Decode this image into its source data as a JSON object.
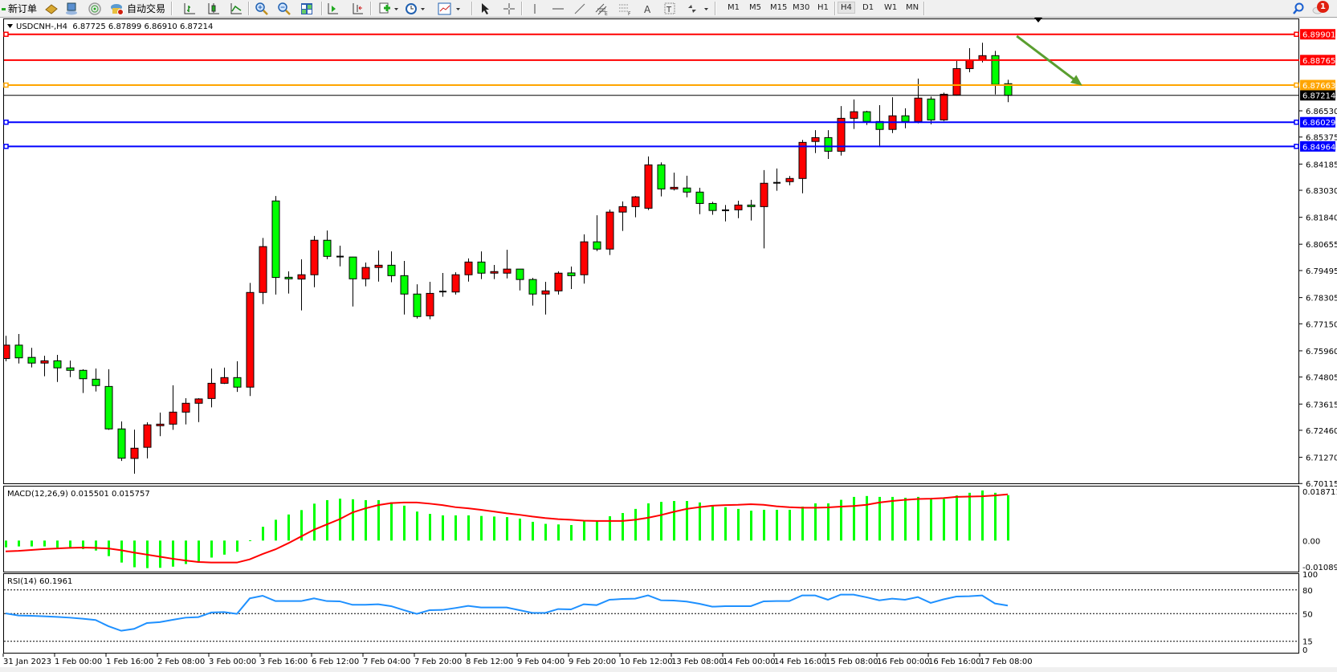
{
  "toolbar": {
    "new_order_label": "新订单",
    "auto_trading_label": "自动交易",
    "timeframes": [
      "M1",
      "M5",
      "M15",
      "M30",
      "H1",
      "H4",
      "D1",
      "W1",
      "MN"
    ],
    "active_timeframe": "H4",
    "notification_count": "1",
    "icons": [
      "new-order-icon",
      "history-book-icon",
      "terminal-icon",
      "signal-icon",
      "auto-trading-icon",
      "bar-chart-icon",
      "candlestick-icon",
      "line-chart-icon",
      "zoom-in-icon",
      "zoom-out-icon",
      "tile-windows-icon",
      "chart-shift-icon",
      "auto-scroll-icon",
      "indicators-icon",
      "periods-clock-icon",
      "templates-icon",
      "cursor-icon",
      "crosshair-icon",
      "vertical-line-icon",
      "horizontal-line-icon",
      "trendline-icon",
      "equidistant-channel-icon",
      "fibonacci-icon",
      "text-icon",
      "text-label-icon",
      "arrows-icon",
      "search-icon",
      "notification-icon"
    ]
  },
  "chart": {
    "info": "USDCNH-,H4  6.87725 6.87899 6.86910 6.87214",
    "macd_label": "MACD(12,26,9) 0.015501 0.015757",
    "rsi_label": "RSI(14) 60.1961"
  },
  "chart_data": {
    "type": "candlestick",
    "symbol": "USDCNH-",
    "timeframe": "H4",
    "bull_color": "#ff0000",
    "bear_color": "#00ff00",
    "ohlc_fields": [
      "open",
      "high",
      "low",
      "close"
    ],
    "candles": [
      [
        6.7562,
        6.7662,
        6.755,
        6.7621
      ],
      [
        6.7621,
        6.767,
        6.754,
        6.7565
      ],
      [
        6.7567,
        6.7609,
        6.7523,
        6.7542
      ],
      [
        6.7542,
        6.7574,
        6.7484,
        6.7552
      ],
      [
        6.7552,
        6.7578,
        6.7459,
        6.7521
      ],
      [
        6.7521,
        6.7553,
        6.748,
        6.751
      ],
      [
        6.751,
        6.7515,
        6.741,
        6.7473
      ],
      [
        6.7471,
        6.7518,
        6.7417,
        6.7443
      ],
      [
        6.7439,
        6.7515,
        6.7248,
        6.7252
      ],
      [
        6.7252,
        6.7285,
        6.7111,
        6.7123
      ],
      [
        6.7122,
        6.7249,
        6.7055,
        6.7167
      ],
      [
        6.7171,
        6.7281,
        6.7122,
        6.727
      ],
      [
        6.7266,
        6.7324,
        6.722,
        6.7273
      ],
      [
        6.7273,
        6.7444,
        6.7248,
        6.7326
      ],
      [
        6.7326,
        6.7387,
        6.7272,
        6.7365
      ],
      [
        6.7365,
        6.7387,
        6.7282,
        6.7384
      ],
      [
        6.7386,
        6.7518,
        6.7347,
        6.7453
      ],
      [
        6.7453,
        6.7522,
        6.745,
        6.7478
      ],
      [
        6.7478,
        6.755,
        6.7415,
        6.7436
      ],
      [
        6.7436,
        6.7895,
        6.7397,
        6.7853
      ],
      [
        6.7853,
        6.8093,
        6.7802,
        6.8055
      ],
      [
        6.8256,
        6.8278,
        6.7844,
        6.7919
      ],
      [
        6.792,
        6.7946,
        6.7848,
        6.7913
      ],
      [
        6.7912,
        6.7999,
        6.7774,
        6.7931
      ],
      [
        6.7931,
        6.8102,
        6.7876,
        6.8083
      ],
      [
        6.8083,
        6.8126,
        6.8,
        6.8012
      ],
      [
        6.8011,
        6.8059,
        6.7968,
        6.8011
      ],
      [
        6.8009,
        6.801,
        6.7791,
        6.7913
      ],
      [
        6.7913,
        6.7985,
        6.788,
        6.7963
      ],
      [
        6.7963,
        6.8038,
        6.7901,
        6.7973
      ],
      [
        6.7973,
        6.8034,
        6.7898,
        6.7927
      ],
      [
        6.7927,
        6.7992,
        6.7756,
        6.7846
      ],
      [
        6.7846,
        6.7889,
        6.7738,
        6.7747
      ],
      [
        6.775,
        6.79,
        6.7735,
        6.7849
      ],
      [
        6.7857,
        6.7939,
        6.7834,
        6.7857
      ],
      [
        6.7855,
        6.7942,
        6.7844,
        6.7931
      ],
      [
        6.7931,
        6.8003,
        6.7901,
        6.7987
      ],
      [
        6.7987,
        6.8034,
        6.7912,
        6.7938
      ],
      [
        6.7938,
        6.7974,
        6.7912,
        6.7945
      ],
      [
        6.7938,
        6.8041,
        6.7915,
        6.7956
      ],
      [
        6.7956,
        6.7956,
        6.7862,
        6.791
      ],
      [
        6.791,
        6.7917,
        6.7795,
        6.7846
      ],
      [
        6.7846,
        6.79,
        6.7756,
        6.786
      ],
      [
        6.786,
        6.7946,
        6.7844,
        6.7938
      ],
      [
        6.7939,
        6.7967,
        6.7868,
        6.7927
      ],
      [
        6.7931,
        6.8109,
        6.7892,
        6.8076
      ],
      [
        6.8076,
        6.8193,
        6.8035,
        6.8044
      ],
      [
        6.8044,
        6.8218,
        6.8018,
        6.8207
      ],
      [
        6.8207,
        6.8254,
        6.8124,
        6.8231
      ],
      [
        6.8231,
        6.8278,
        6.8184,
        6.8274
      ],
      [
        6.8224,
        6.8452,
        6.8216,
        6.8415
      ],
      [
        6.8415,
        6.8426,
        6.8276,
        6.8309
      ],
      [
        6.8309,
        6.8381,
        6.8302,
        6.8316
      ],
      [
        6.8313,
        6.8367,
        6.8272,
        6.8295
      ],
      [
        6.8295,
        6.8314,
        6.8198,
        6.8245
      ],
      [
        6.8245,
        6.8252,
        6.8195,
        6.8214
      ],
      [
        6.8215,
        6.8238,
        6.8166,
        6.8215
      ],
      [
        6.8217,
        6.8257,
        6.818,
        6.8238
      ],
      [
        6.8238,
        6.8261,
        6.817,
        6.8231
      ],
      [
        6.8231,
        6.8392,
        6.8047,
        6.8334
      ],
      [
        6.8336,
        6.8399,
        6.8301,
        6.8336
      ],
      [
        6.8341,
        6.8366,
        6.8325,
        6.8355
      ],
      [
        6.8355,
        6.8525,
        6.829,
        6.8514
      ],
      [
        6.8518,
        6.8568,
        6.8467,
        6.8535
      ],
      [
        6.8535,
        6.8568,
        6.8441,
        6.8475
      ],
      [
        6.8475,
        6.8674,
        6.8456,
        6.862
      ],
      [
        6.862,
        6.8703,
        6.8573,
        6.8649
      ],
      [
        6.8649,
        6.8653,
        6.8591,
        6.8606
      ],
      [
        6.8606,
        6.8678,
        6.8493,
        6.8571
      ],
      [
        6.8571,
        6.8713,
        6.8555,
        6.8631
      ],
      [
        6.8631,
        6.8664,
        6.8576,
        6.8606
      ],
      [
        6.8606,
        6.8795,
        6.8598,
        6.8709
      ],
      [
        6.8705,
        6.8716,
        6.8594,
        6.8613
      ],
      [
        6.8613,
        6.8733,
        6.8608,
        6.8726
      ],
      [
        6.8723,
        6.8873,
        6.872,
        6.8839
      ],
      [
        6.8839,
        6.8929,
        6.8823,
        6.8877
      ],
      [
        6.8877,
        6.8953,
        6.8866,
        6.8896
      ],
      [
        6.8896,
        6.8917,
        6.8725,
        6.8769
      ],
      [
        6.87725,
        6.87899,
        6.8691,
        6.87214
      ]
    ],
    "price_axis_labels": [
      "6.86530",
      "6.85375",
      "6.84185",
      "6.83030",
      "6.81840",
      "6.80655",
      "6.79495",
      "6.78305",
      "6.77150",
      "6.75960",
      "6.74805",
      "6.73615",
      "6.72460",
      "6.71270",
      "6.70115"
    ],
    "current_price": {
      "value": "6.87214",
      "color": "#000000"
    },
    "horizontal_lines": [
      {
        "price": "6.89901",
        "color": "#ff0000",
        "handle": true
      },
      {
        "price": "6.88765",
        "color": "#ff0000",
        "handle": false
      },
      {
        "price": "6.87663",
        "color": "#ffa500",
        "handle": true
      },
      {
        "price": "6.86029",
        "color": "#0000ff",
        "handle": true
      },
      {
        "price": "6.84964",
        "color": "#0000ff",
        "handle": true
      }
    ],
    "arrow": {
      "color": "#5a9e2f",
      "from": {
        "bar": 78.7,
        "price": 6.8982
      },
      "to": {
        "bar": 83.8,
        "price": 6.8764
      }
    },
    "x_ticks": [
      {
        "label": "31 Jan 2023",
        "bar": 0
      },
      {
        "label": "1 Feb 00:00",
        "bar": 4
      },
      {
        "label": "1 Feb 16:00",
        "bar": 8
      },
      {
        "label": "2 Feb 08:00",
        "bar": 12
      },
      {
        "label": "3 Feb 00:00",
        "bar": 16
      },
      {
        "label": "3 Feb 16:00",
        "bar": 20
      },
      {
        "label": "6 Feb 12:00",
        "bar": 24
      },
      {
        "label": "7 Feb 04:00",
        "bar": 28
      },
      {
        "label": "7 Feb 20:00",
        "bar": 32
      },
      {
        "label": "8 Feb 12:00",
        "bar": 36
      },
      {
        "label": "9 Feb 04:00",
        "bar": 40
      },
      {
        "label": "9 Feb 20:00",
        "bar": 44
      },
      {
        "label": "10 Feb 12:00",
        "bar": 48
      },
      {
        "label": "13 Feb 08:00",
        "bar": 52
      },
      {
        "label": "14 Feb 00:00",
        "bar": 56
      },
      {
        "label": "14 Feb 16:00",
        "bar": 60
      },
      {
        "label": "15 Feb 08:00",
        "bar": 64
      },
      {
        "label": "16 Feb 00:00",
        "bar": 68
      },
      {
        "label": "16 Feb 16:00",
        "bar": 72
      },
      {
        "label": "17 Feb 08:00",
        "bar": 76
      }
    ],
    "macd": {
      "params": "12,26,9",
      "axis_labels": [
        "0.018711",
        "0.00",
        "-0.010896"
      ],
      "ylim": [
        -0.010896,
        0.018711
      ],
      "histogram_color": "#00ff00",
      "signal_color": "#ff0000",
      "histogram": [
        -0.0023,
        -0.002,
        -0.002,
        -0.002,
        -0.0024,
        -0.0027,
        -0.0029,
        -0.0034,
        -0.0053,
        -0.0075,
        -0.0091,
        -0.0094,
        -0.0093,
        -0.0089,
        -0.008,
        -0.0075,
        -0.0058,
        -0.0048,
        -0.0038,
        0.0001,
        0.0047,
        0.0071,
        0.0089,
        0.0104,
        0.0126,
        0.0138,
        0.0143,
        0.0141,
        0.0138,
        0.0138,
        0.0131,
        0.0119,
        0.0099,
        0.0091,
        0.0086,
        0.0086,
        0.0086,
        0.0084,
        0.0082,
        0.008,
        0.0075,
        0.0064,
        0.0057,
        0.0055,
        0.0053,
        0.0066,
        0.0066,
        0.0083,
        0.0094,
        0.0108,
        0.0127,
        0.0132,
        0.0135,
        0.0135,
        0.013,
        0.0117,
        0.0114,
        0.0108,
        0.0102,
        0.0105,
        0.0105,
        0.0105,
        0.0116,
        0.0127,
        0.0127,
        0.0139,
        0.0149,
        0.0152,
        0.0149,
        0.0149,
        0.0146,
        0.0149,
        0.0142,
        0.0142,
        0.0154,
        0.0163,
        0.0171,
        0.0163,
        0.015501
      ],
      "signal": [
        -0.0037,
        -0.0035,
        -0.0032,
        -0.0029,
        -0.0027,
        -0.0025,
        -0.0024,
        -0.0025,
        -0.0027,
        -0.0033,
        -0.0041,
        -0.0048,
        -0.0055,
        -0.0062,
        -0.0068,
        -0.0073,
        -0.0075,
        -0.0075,
        -0.0075,
        -0.0064,
        -0.0046,
        -0.003,
        -0.0009,
        0.0014,
        0.0037,
        0.0055,
        0.0073,
        0.0096,
        0.011,
        0.0121,
        0.0128,
        0.013,
        0.013,
        0.0126,
        0.0121,
        0.0114,
        0.011,
        0.0105,
        0.0099,
        0.0093,
        0.0088,
        0.0082,
        0.0077,
        0.0073,
        0.0071,
        0.0068,
        0.0067,
        0.0067,
        0.0067,
        0.0071,
        0.0078,
        0.0087,
        0.0098,
        0.0108,
        0.0114,
        0.0119,
        0.0121,
        0.0122,
        0.0124,
        0.0122,
        0.0117,
        0.0114,
        0.0112,
        0.0112,
        0.0113,
        0.0116,
        0.0118,
        0.0122,
        0.013,
        0.0135,
        0.0139,
        0.0142,
        0.0143,
        0.0145,
        0.0149,
        0.015,
        0.0151,
        0.0154,
        0.015757
      ]
    },
    "rsi": {
      "period": 14,
      "axis_labels": [
        "100",
        "80",
        "50",
        "15",
        "0"
      ],
      "levels": [
        80,
        50,
        15
      ],
      "ylim": [
        0,
        100
      ],
      "color": "#1e90ff",
      "values": [
        50.3,
        47.6,
        47.3,
        46.6,
        45.9,
        44.9,
        43.6,
        41.9,
        34.1,
        28.3,
        30.7,
        38.1,
        39.2,
        42.2,
        44.9,
        45.6,
        51.4,
        52.0,
        49.7,
        69.3,
        72.7,
        65.9,
        65.9,
        65.9,
        69.3,
        65.9,
        65.6,
        61.2,
        61.2,
        61.9,
        59.5,
        54.4,
        49.7,
        54.4,
        54.7,
        57.1,
        59.8,
        57.8,
        57.8,
        57.8,
        54.4,
        51.0,
        51.0,
        55.8,
        55.4,
        61.9,
        60.8,
        67.6,
        68.6,
        69.0,
        73.1,
        66.9,
        66.6,
        65.3,
        62.5,
        58.8,
        59.5,
        59.5,
        59.5,
        65.6,
        65.9,
        65.9,
        73.1,
        73.1,
        67.6,
        74.1,
        74.1,
        70.7,
        66.9,
        69.0,
        67.6,
        71.0,
        63.6,
        68.1,
        71.7,
        72.0,
        73.1,
        62.9,
        60.1961
      ]
    }
  }
}
